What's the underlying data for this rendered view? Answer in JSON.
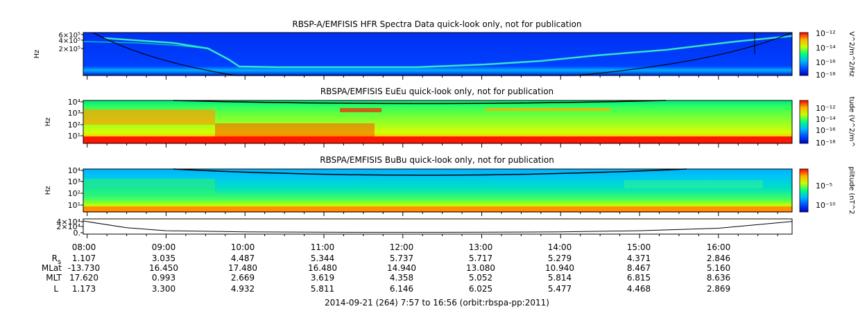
{
  "panels": [
    {
      "title": "RBSP-A/EMFISIS  HFR Spectra Data quick-look only, not for publication",
      "ylabel": "Hz",
      "yticks": [
        "6×10⁵",
        "4×10⁵",
        "2×10⁵"
      ],
      "colorbar": {
        "label": "V^2/m^2/Hz",
        "ticks": [
          "10⁻¹²",
          "10⁻¹⁴",
          "10⁻¹⁶",
          "10⁻¹⁸"
        ]
      }
    },
    {
      "title": "RBSPA/EMFISIS  EuEu quick-look only, not for publication",
      "ylabel": "Hz",
      "yticks": [
        "10⁴",
        "10³",
        "10²",
        "10¹"
      ],
      "colorbar": {
        "label": "tude (V^2/m^",
        "ticks": [
          "10⁻¹²",
          "10⁻¹⁴",
          "10⁻¹⁶",
          "10⁻¹⁸"
        ]
      }
    },
    {
      "title": "RBSPA/EMFISIS  BuBu quick-look only, not for publication",
      "ylabel": "Hz",
      "yticks": [
        "10⁴",
        "10³",
        "10²",
        "10¹"
      ],
      "colorbar": {
        "label": "plitude (nT^2",
        "ticks": [
          "10⁻⁵",
          "10⁻¹⁰"
        ]
      }
    },
    {
      "title": "",
      "ylabel": "",
      "yticks": [
        "4×10⁴",
        "2×10⁴",
        "0."
      ]
    }
  ],
  "time_labels": [
    "08:00",
    "09:00",
    "10:00",
    "11:00",
    "12:00",
    "13:00",
    "14:00",
    "15:00",
    "16:00"
  ],
  "ephemeris": {
    "rows": [
      {
        "label": "R",
        "sub": "s",
        "values": [
          "1.107",
          "3.035",
          "4.487",
          "5.344",
          "5.737",
          "5.717",
          "5.279",
          "4.371",
          "2.846"
        ]
      },
      {
        "label": "MLat",
        "sub": "",
        "values": [
          "-13.730",
          "16.450",
          "17.480",
          "16.480",
          "14.940",
          "13.080",
          "10.940",
          "8.467",
          "5.160"
        ]
      },
      {
        "label": "MLT",
        "sub": "",
        "values": [
          "17.620",
          "0.993",
          "2.669",
          "3.619",
          "4.358",
          "5.052",
          "5.814",
          "6.815",
          "8.636"
        ]
      },
      {
        "label": "L",
        "sub": "",
        "values": [
          "1.173",
          "3.300",
          "4.932",
          "5.811",
          "6.146",
          "6.025",
          "5.477",
          "4.468",
          "2.869"
        ]
      }
    ]
  },
  "footer": "2014-09-21 (264) 7:57 to 16:56 (orbit:rbspa-pp:2011)",
  "chart_data": [
    {
      "type": "heatmap",
      "title": "RBSP-A/EMFISIS  HFR Spectra Data quick-look only, not for publication",
      "ylabel": "Hz",
      "colorbar_label": "V^2/m^2/Hz",
      "colorbar_range_log10": [
        -18,
        -12
      ],
      "x_range": [
        "07:57",
        "16:56"
      ],
      "y_range": [
        0,
        700000
      ],
      "colormap": [
        "#0000c8",
        "#0050ff",
        "#00b4ff",
        "#00ff80",
        "#c8ff00",
        "#ffb400",
        "#ff0000"
      ]
    },
    {
      "type": "heatmap",
      "title": "RBSPA/EMFISIS  EuEu quick-look only, not for publication",
      "ylabel": "Hz",
      "colorbar_label": "tude (V^2/m^",
      "colorbar_range_log10": [
        -18,
        -12
      ],
      "x_range": [
        "07:57",
        "16:56"
      ],
      "y_scale": "log",
      "y_range": [
        2,
        12000
      ],
      "colormap": [
        "#0000c8",
        "#0050ff",
        "#00b4ff",
        "#00ff80",
        "#c8ff00",
        "#ffb400",
        "#ff0000"
      ]
    },
    {
      "type": "heatmap",
      "title": "RBSPA/EMFISIS  BuBu quick-look only, not for publication",
      "ylabel": "Hz",
      "colorbar_label": "plitude (nT^2",
      "x_range": [
        "07:57",
        "16:56"
      ],
      "y_scale": "log",
      "y_range": [
        2,
        12000
      ],
      "colormap": [
        "#0000c8",
        "#0050ff",
        "#00b4ff",
        "#00ff80",
        "#c8ff00",
        "#ffb400",
        "#ff0000"
      ]
    },
    {
      "type": "line",
      "ylim": [
        0,
        50000
      ],
      "x": [
        "07:57",
        "08:30",
        "09:00",
        "10:00",
        "11:00",
        "12:00",
        "13:00",
        "14:00",
        "15:00",
        "16:00",
        "16:56"
      ],
      "y": [
        47000,
        20000,
        8000,
        3500,
        2000,
        1700,
        2000,
        3500,
        8000,
        18000,
        45000
      ]
    }
  ]
}
